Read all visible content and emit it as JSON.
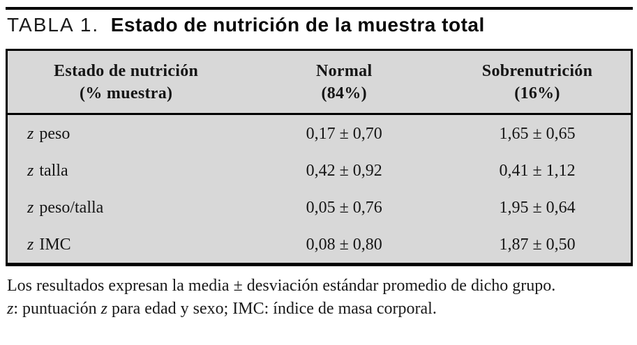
{
  "title": {
    "label": "TABLA 1.",
    "text": "Estado de nutrición de la muestra total"
  },
  "table": {
    "header": {
      "col1": {
        "line1": "Estado de nutrición",
        "line2": "(% muestra)"
      },
      "col2": {
        "line1": "Normal",
        "line2": "(84%)"
      },
      "col3": {
        "line1": "Sobrenutrición",
        "line2": "(16%)"
      }
    },
    "rows": [
      {
        "z": "z",
        "label": "peso",
        "normal": "0,17 ± 0,70",
        "sobrenutricion": "1,65 ± 0,65"
      },
      {
        "z": "z",
        "label": "talla",
        "normal": "0,42 ± 0,92",
        "sobrenutricion": "0,41 ± 1,12"
      },
      {
        "z": "z",
        "label": "peso/talla",
        "normal": "0,05 ± 0,76",
        "sobrenutricion": "1,95 ± 0,64"
      },
      {
        "z": "z",
        "label": "IMC",
        "normal": "0,08 ± 0,80",
        "sobrenutricion": "1,87 ± 0,50"
      }
    ]
  },
  "footnotes": {
    "line1": "Los resultados expresan la media ± desviación estándar promedio de dicho grupo.",
    "line2_parts": {
      "p0": "z",
      "p1": ": puntuación ",
      "p2": "z",
      "p3": " para edad y sexo; IMC: índice de masa corporal."
    }
  },
  "colors": {
    "table_background": "#d8d8d8",
    "border": "#000000",
    "page_background": "#ffffff"
  },
  "chart_data": {
    "type": "table",
    "title": "TABLA 1. Estado de nutrición de la muestra total",
    "columns": [
      "Estado de nutrición (% muestra)",
      "Normal (84%)",
      "Sobrenutrición (16%)"
    ],
    "rows": [
      [
        "z peso",
        "0,17 ± 0,70",
        "1,65 ± 0,65"
      ],
      [
        "z talla",
        "0,42 ± 0,92",
        "0,41 ± 1,12"
      ],
      [
        "z peso/talla",
        "0,05 ± 0,76",
        "1,95 ± 0,64"
      ],
      [
        "z IMC",
        "0,08 ± 0,80",
        "1,87 ± 0,50"
      ]
    ],
    "footnotes": [
      "Los resultados expresan la media ± desviación estándar promedio de dicho grupo.",
      "z: puntuación z para edad y sexo; IMC: índice de masa corporal."
    ]
  }
}
